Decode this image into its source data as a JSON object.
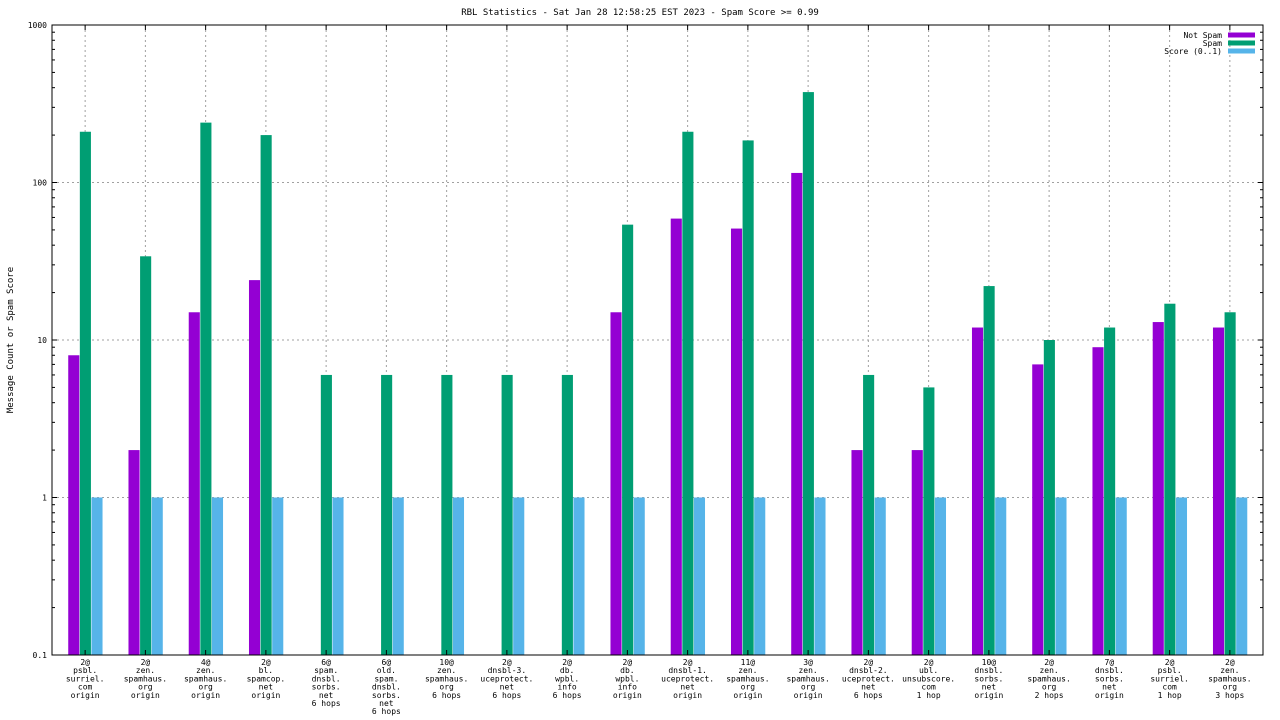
{
  "chart_data": {
    "type": "bar",
    "title": "RBL Statistics - Sat Jan 28 12:58:25 EST 2023 - Spam Score >= 0.99",
    "ylabel": "Message Count or Spam Score",
    "xlabel": "",
    "yscale": "log",
    "ylim": [
      0.1,
      1000
    ],
    "yticks": [
      {
        "value": 0.1,
        "label": "0.1"
      },
      {
        "value": 1,
        "label": "1"
      },
      {
        "value": 10,
        "label": "10"
      },
      {
        "value": 100,
        "label": "100"
      },
      {
        "value": 1000,
        "label": "1000"
      }
    ],
    "grid": true,
    "legend_position": "top-right",
    "categories": [
      [
        "2@",
        "psbl.",
        "surriel.",
        "com",
        "origin"
      ],
      [
        "2@",
        "zen.",
        "spamhaus.",
        "org",
        "origin"
      ],
      [
        "4@",
        "zen.",
        "spamhaus.",
        "org",
        "origin"
      ],
      [
        "2@",
        "bl.",
        "spamcop.",
        "net",
        "origin"
      ],
      [
        "6@",
        "spam.",
        "dnsbl.",
        "sorbs.",
        "net",
        "6 hops"
      ],
      [
        "6@",
        "old.",
        "spam.",
        "dnsbl.",
        "sorbs.",
        "net",
        "6 hops"
      ],
      [
        "10@",
        "zen.",
        "spamhaus.",
        "org",
        "6 hops"
      ],
      [
        "2@",
        "dnsbl-3.",
        "uceprotect.",
        "net",
        "6 hops"
      ],
      [
        "2@",
        "db.",
        "wpbl.",
        "info",
        "6 hops"
      ],
      [
        "2@",
        "db.",
        "wpbl.",
        "info",
        "origin"
      ],
      [
        "2@",
        "dnsbl-1.",
        "uceprotect.",
        "net",
        "origin"
      ],
      [
        "11@",
        "zen.",
        "spamhaus.",
        "org",
        "origin"
      ],
      [
        "3@",
        "zen.",
        "spamhaus.",
        "org",
        "origin"
      ],
      [
        "2@",
        "dnsbl-2.",
        "uceprotect.",
        "net",
        "6 hops"
      ],
      [
        "2@",
        "ubl.",
        "unsubscore.",
        "com",
        "1 hop"
      ],
      [
        "10@",
        "dnsbl.",
        "sorbs.",
        "net",
        "origin"
      ],
      [
        "2@",
        "zen.",
        "spamhaus.",
        "org",
        "2 hops"
      ],
      [
        "7@",
        "dnsbl.",
        "sorbs.",
        "net",
        "origin"
      ],
      [
        "2@",
        "psbl.",
        "surriel.",
        "com",
        "1 hop"
      ],
      [
        "2@",
        "zen.",
        "spamhaus.",
        "org",
        "3 hops"
      ]
    ],
    "series": [
      {
        "name": "Not Spam",
        "color": "#9400d3",
        "values": [
          8,
          2,
          15,
          24,
          null,
          null,
          null,
          null,
          null,
          15,
          59,
          51,
          115,
          2,
          2,
          12,
          7,
          9,
          13,
          12
        ]
      },
      {
        "name": "Spam",
        "color": "#009e73",
        "values": [
          210,
          34,
          240,
          200,
          6,
          6,
          6,
          6,
          6,
          54,
          210,
          185,
          375,
          6,
          5,
          22,
          10,
          12,
          17,
          15
        ]
      },
      {
        "name": "Score (0..1)",
        "color": "#56b4e9",
        "values": [
          1,
          1,
          1,
          1,
          1,
          1,
          1,
          1,
          1,
          1,
          1,
          1,
          1,
          1,
          1,
          1,
          1,
          1,
          1,
          1
        ]
      }
    ]
  }
}
